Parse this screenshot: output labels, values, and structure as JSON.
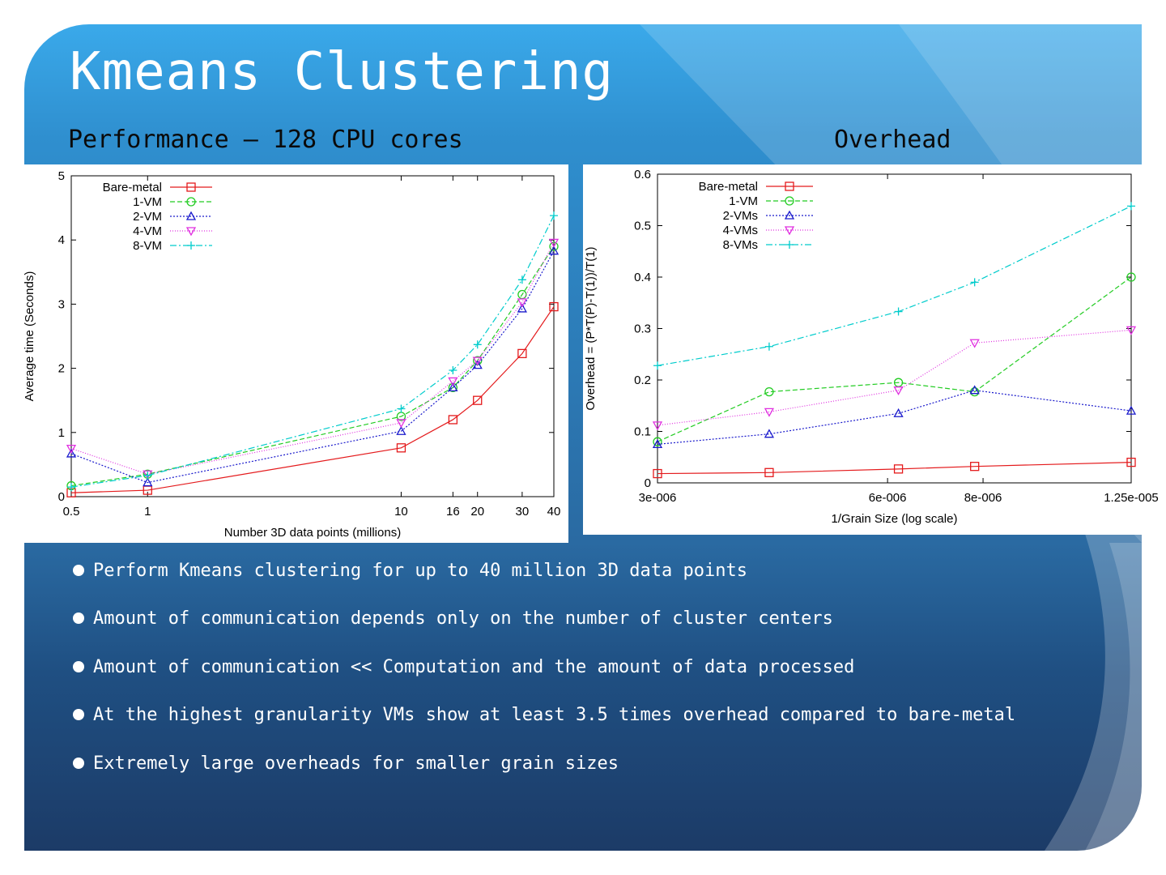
{
  "slide": {
    "title": "Kmeans Clustering",
    "subtitle_left": "Performance — 128 CPU cores",
    "subtitle_right": "Overhead",
    "bullets": [
      "Perform Kmeans clustering for up to 40 million 3D data points",
      "Amount of communication depends only on the number of cluster centers",
      "Amount of communication  << Computation and the amount of data processed",
      "At the highest granularity VMs show at least 3.5 times overhead compared to bare-metal",
      "Extremely large overheads for smaller grain sizes"
    ]
  },
  "chart_data": [
    {
      "type": "line",
      "xlabel": "Number 3D data points (millions)",
      "ylabel": "Average time (Seconds)",
      "x_scale": "log",
      "x": [
        0.5,
        1,
        10,
        16,
        20,
        30,
        40
      ],
      "xticks": [
        0.5,
        1,
        10,
        16,
        20,
        30,
        40
      ],
      "xtick_labels": [
        "0.5",
        "1",
        "10",
        "16",
        "20",
        "30",
        "40"
      ],
      "xlim": [
        0.5,
        40
      ],
      "ylim": [
        0,
        5
      ],
      "yticks": [
        0,
        1,
        2,
        3,
        4,
        5
      ],
      "ytick_labels": [
        "0",
        "1",
        "2",
        "3",
        "4",
        "5"
      ],
      "legend_position": "top-left",
      "series": [
        {
          "name": "Bare-metal",
          "color": "#e41a1c",
          "marker": "square",
          "dash": "",
          "values": [
            0.06,
            0.1,
            0.76,
            1.2,
            1.5,
            2.23,
            2.96
          ]
        },
        {
          "name": "1-VM",
          "color": "#22cc22",
          "marker": "circle",
          "dash": "6,3",
          "values": [
            0.17,
            0.35,
            1.25,
            1.7,
            2.12,
            3.15,
            3.9
          ]
        },
        {
          "name": "2-VM",
          "color": "#1a1acc",
          "marker": "triangle-up",
          "dash": "2,2",
          "values": [
            0.67,
            0.22,
            1.02,
            1.7,
            2.05,
            2.93,
            3.83
          ]
        },
        {
          "name": "4-VM",
          "color": "#e030e0",
          "marker": "triangle-down",
          "dash": "1,2",
          "values": [
            0.75,
            0.35,
            1.15,
            1.8,
            2.12,
            3.03,
            3.96
          ]
        },
        {
          "name": "8-VM",
          "color": "#00cccc",
          "marker": "plus",
          "dash": "8,3,2,3",
          "values": [
            0.15,
            0.33,
            1.37,
            1.97,
            2.37,
            3.38,
            4.38
          ]
        }
      ]
    },
    {
      "type": "line",
      "xlabel": "1/Grain Size    (log scale)",
      "ylabel": "Overhead = (P*T(P)-T(1))/T(1)",
      "x_scale": "log",
      "x": [
        3e-06,
        4.2e-06,
        6.2e-06,
        7.8e-06,
        1.25e-05
      ],
      "xticks": [
        3e-06,
        6e-06,
        8e-06,
        1.25e-05
      ],
      "xtick_labels": [
        "3e-006",
        "6e-006",
        "8e-006",
        "1.25e-005"
      ],
      "xlim": [
        3e-06,
        1.25e-05
      ],
      "ylim": [
        0,
        0.6
      ],
      "yticks": [
        0,
        0.1,
        0.2,
        0.3,
        0.4,
        0.5,
        0.6
      ],
      "ytick_labels": [
        "0",
        "0.1",
        "0.2",
        "0.3",
        "0.4",
        "0.5",
        "0.6"
      ],
      "legend_position": "top-left",
      "series": [
        {
          "name": "Bare-metal",
          "color": "#e41a1c",
          "marker": "square",
          "dash": "",
          "values": [
            0.018,
            0.02,
            0.027,
            0.032,
            0.04
          ]
        },
        {
          "name": "1-VM",
          "color": "#22cc22",
          "marker": "circle",
          "dash": "6,3",
          "values": [
            0.08,
            0.177,
            0.195,
            0.177,
            0.4
          ]
        },
        {
          "name": "2-VMs",
          "color": "#1a1acc",
          "marker": "triangle-up",
          "dash": "2,2",
          "values": [
            0.075,
            0.095,
            0.135,
            0.18,
            0.14
          ]
        },
        {
          "name": "4-VMs",
          "color": "#e030e0",
          "marker": "triangle-down",
          "dash": "1,2",
          "values": [
            0.112,
            0.138,
            0.18,
            0.272,
            0.297
          ]
        },
        {
          "name": "8-VMs",
          "color": "#00cccc",
          "marker": "plus",
          "dash": "8,3,2,3",
          "values": [
            0.228,
            0.265,
            0.333,
            0.39,
            0.538
          ]
        }
      ]
    }
  ]
}
